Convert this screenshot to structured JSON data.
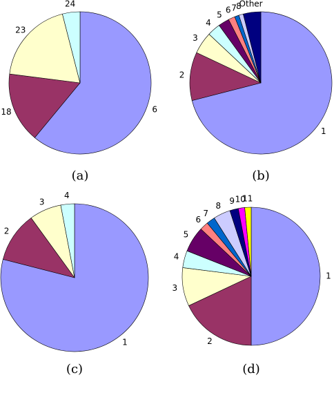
{
  "chart_data": [
    {
      "type": "pie",
      "caption": "(a)",
      "categories": [
        "6",
        "18",
        "23",
        "24"
      ],
      "values": [
        61,
        16,
        19,
        4
      ],
      "colors": [
        "#9999ff",
        "#993366",
        "#ffffcc",
        "#ccffff"
      ]
    },
    {
      "type": "pie",
      "caption": "(b)",
      "categories": [
        "1",
        "2",
        "3",
        "4",
        "5",
        "6",
        "7",
        "8",
        "Other"
      ],
      "values": [
        71,
        11,
        5,
        3,
        2.5,
        1.5,
        1,
        1,
        4
      ],
      "colors": [
        "#9999ff",
        "#993366",
        "#ffffcc",
        "#ccffff",
        "#660066",
        "#ff8080",
        "#0066cc",
        "#ccccff",
        "#000080"
      ]
    },
    {
      "type": "pie",
      "caption": "(c)",
      "categories": [
        "1",
        "2",
        "3",
        "4"
      ],
      "values": [
        79,
        11,
        7,
        3
      ],
      "colors": [
        "#9999ff",
        "#993366",
        "#ffffcc",
        "#ccffff"
      ]
    },
    {
      "type": "pie",
      "caption": "(d)",
      "categories": [
        "1",
        "2",
        "3",
        "4",
        "5",
        "6",
        "7",
        "8",
        "9",
        "10",
        "11"
      ],
      "values": [
        50,
        18,
        9,
        4,
        6,
        2,
        2,
        4,
        2,
        1.5,
        1.5
      ],
      "colors": [
        "#9999ff",
        "#993366",
        "#ffffcc",
        "#ccffff",
        "#660066",
        "#ff8080",
        "#0066cc",
        "#ccccff",
        "#000080",
        "#ff00ff",
        "#ffff00"
      ]
    }
  ]
}
